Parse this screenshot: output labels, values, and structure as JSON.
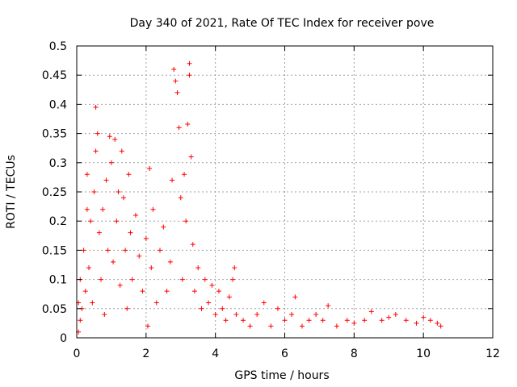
{
  "chart_data": {
    "type": "scatter",
    "title": "Day 340 of 2021, Rate Of TEC Index for receiver pove",
    "xlabel": "GPS time / hours",
    "ylabel": "ROTI / TECUs",
    "xlim": [
      0,
      12
    ],
    "ylim": [
      0,
      0.5
    ],
    "xticks": [
      0,
      2,
      4,
      6,
      8,
      10,
      12
    ],
    "yticks": [
      0,
      0.05,
      0.1,
      0.15,
      0.2,
      0.25,
      0.3,
      0.35,
      0.4,
      0.45,
      0.5
    ],
    "grid": true,
    "marker": "+",
    "color": "#ff0000",
    "series": [
      {
        "name": "ROTI",
        "points": [
          [
            0.05,
            0.01
          ],
          [
            0.05,
            0.06
          ],
          [
            0.1,
            0.03
          ],
          [
            0.1,
            0.1
          ],
          [
            0.15,
            0.05
          ],
          [
            0.2,
            0.15
          ],
          [
            0.25,
            0.08
          ],
          [
            0.3,
            0.22
          ],
          [
            0.3,
            0.28
          ],
          [
            0.35,
            0.12
          ],
          [
            0.4,
            0.2
          ],
          [
            0.45,
            0.06
          ],
          [
            0.5,
            0.25
          ],
          [
            0.55,
            0.32
          ],
          [
            0.55,
            0.395
          ],
          [
            0.6,
            0.35
          ],
          [
            0.65,
            0.18
          ],
          [
            0.7,
            0.1
          ],
          [
            0.75,
            0.22
          ],
          [
            0.8,
            0.04
          ],
          [
            0.85,
            0.27
          ],
          [
            0.9,
            0.15
          ],
          [
            0.95,
            0.345
          ],
          [
            1.0,
            0.3
          ],
          [
            1.05,
            0.13
          ],
          [
            1.1,
            0.34
          ],
          [
            1.15,
            0.2
          ],
          [
            1.2,
            0.25
          ],
          [
            1.25,
            0.09
          ],
          [
            1.3,
            0.32
          ],
          [
            1.35,
            0.24
          ],
          [
            1.4,
            0.15
          ],
          [
            1.45,
            0.05
          ],
          [
            1.5,
            0.28
          ],
          [
            1.55,
            0.18
          ],
          [
            1.6,
            0.1
          ],
          [
            1.7,
            0.21
          ],
          [
            1.8,
            0.14
          ],
          [
            1.9,
            0.08
          ],
          [
            2.0,
            0.17
          ],
          [
            2.05,
            0.02
          ],
          [
            2.1,
            0.29
          ],
          [
            2.15,
            0.12
          ],
          [
            2.2,
            0.22
          ],
          [
            2.3,
            0.06
          ],
          [
            2.4,
            0.15
          ],
          [
            2.5,
            0.19
          ],
          [
            2.6,
            0.08
          ],
          [
            2.7,
            0.13
          ],
          [
            2.75,
            0.27
          ],
          [
            2.8,
            0.46
          ],
          [
            2.85,
            0.44
          ],
          [
            2.9,
            0.42
          ],
          [
            2.95,
            0.36
          ],
          [
            3.0,
            0.24
          ],
          [
            3.05,
            0.1
          ],
          [
            3.1,
            0.28
          ],
          [
            3.15,
            0.2
          ],
          [
            3.2,
            0.366
          ],
          [
            3.25,
            0.47
          ],
          [
            3.25,
            0.45
          ],
          [
            3.3,
            0.31
          ],
          [
            3.35,
            0.16
          ],
          [
            3.4,
            0.08
          ],
          [
            3.5,
            0.12
          ],
          [
            3.6,
            0.05
          ],
          [
            3.7,
            0.1
          ],
          [
            3.8,
            0.06
          ],
          [
            3.9,
            0.09
          ],
          [
            4.0,
            0.04
          ],
          [
            4.1,
            0.08
          ],
          [
            4.2,
            0.05
          ],
          [
            4.3,
            0.03
          ],
          [
            4.4,
            0.07
          ],
          [
            4.5,
            0.1
          ],
          [
            4.55,
            0.12
          ],
          [
            4.6,
            0.04
          ],
          [
            4.8,
            0.03
          ],
          [
            5.0,
            0.02
          ],
          [
            5.2,
            0.04
          ],
          [
            5.4,
            0.06
          ],
          [
            5.6,
            0.02
          ],
          [
            5.8,
            0.05
          ],
          [
            6.0,
            0.03
          ],
          [
            6.2,
            0.04
          ],
          [
            6.3,
            0.07
          ],
          [
            6.5,
            0.02
          ],
          [
            6.7,
            0.03
          ],
          [
            6.9,
            0.04
          ],
          [
            7.1,
            0.03
          ],
          [
            7.25,
            0.055
          ],
          [
            7.5,
            0.02
          ],
          [
            7.8,
            0.03
          ],
          [
            8.0,
            0.025
          ],
          [
            8.3,
            0.03
          ],
          [
            8.5,
            0.045
          ],
          [
            8.8,
            0.03
          ],
          [
            9.0,
            0.035
          ],
          [
            9.2,
            0.04
          ],
          [
            9.5,
            0.03
          ],
          [
            9.8,
            0.025
          ],
          [
            10.0,
            0.035
          ],
          [
            10.2,
            0.03
          ],
          [
            10.4,
            0.025
          ],
          [
            10.5,
            0.02
          ]
        ]
      }
    ]
  }
}
